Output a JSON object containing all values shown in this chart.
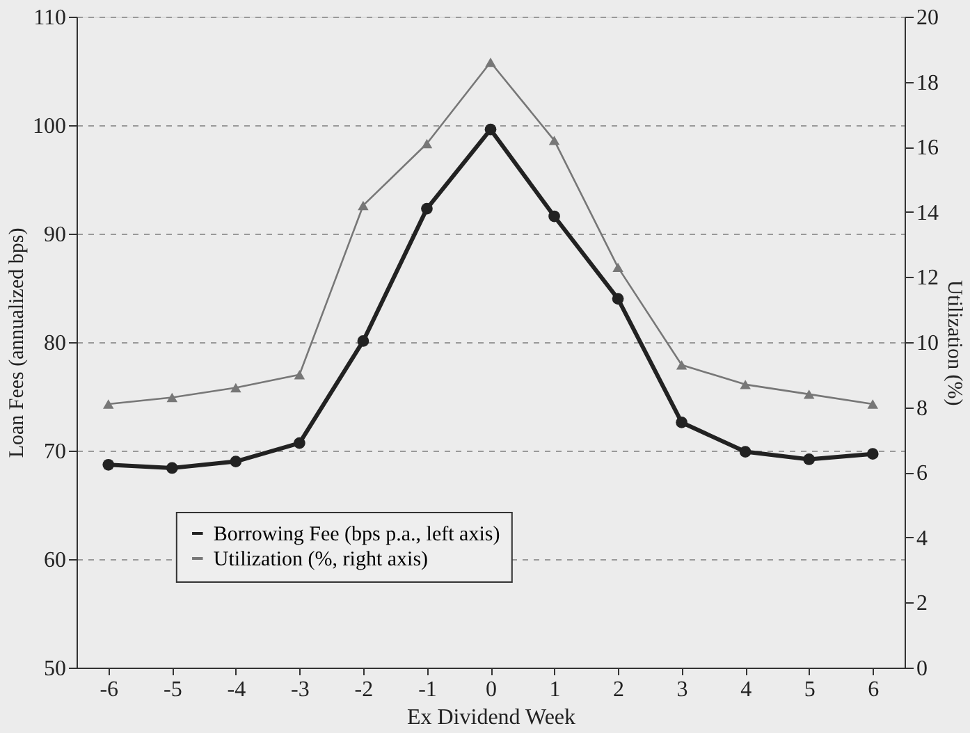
{
  "chart_data": {
    "type": "line",
    "xlabel": "Ex Dividend Week",
    "ylabel": "Loan Fees (annualized bps)",
    "y2label": "Utilization (%)",
    "categories": [
      "-6",
      "-5",
      "-4",
      "-3",
      "-2",
      "-1",
      "0",
      "1",
      "2",
      "3",
      "4",
      "5",
      "6"
    ],
    "series": [
      {
        "name": "Borrowing Fee (bps p.a., left axis)",
        "color": "#222222",
        "marker": "circle",
        "values": [
          68.7,
          68.4,
          69.0,
          70.7,
          80.1,
          92.3,
          99.6,
          91.6,
          84.0,
          72.6,
          69.9,
          69.2,
          69.7
        ]
      },
      {
        "name": "Utilization (%, right axis)",
        "color": "#777777",
        "marker": "triangle",
        "axis": "y2",
        "values": [
          8.1,
          8.3,
          8.6,
          9.0,
          14.2,
          16.1,
          18.6,
          16.2,
          12.3,
          9.3,
          8.7,
          8.4,
          8.1
        ]
      }
    ],
    "ylim": [
      50,
      110
    ],
    "yticks": [
      50,
      60,
      70,
      80,
      90,
      100,
      110
    ],
    "y2lim": [
      0,
      20
    ],
    "y2ticks": [
      0,
      2,
      4,
      6,
      8,
      10,
      12,
      14,
      16,
      18,
      20
    ],
    "grid": "y",
    "legend": "bottom"
  }
}
